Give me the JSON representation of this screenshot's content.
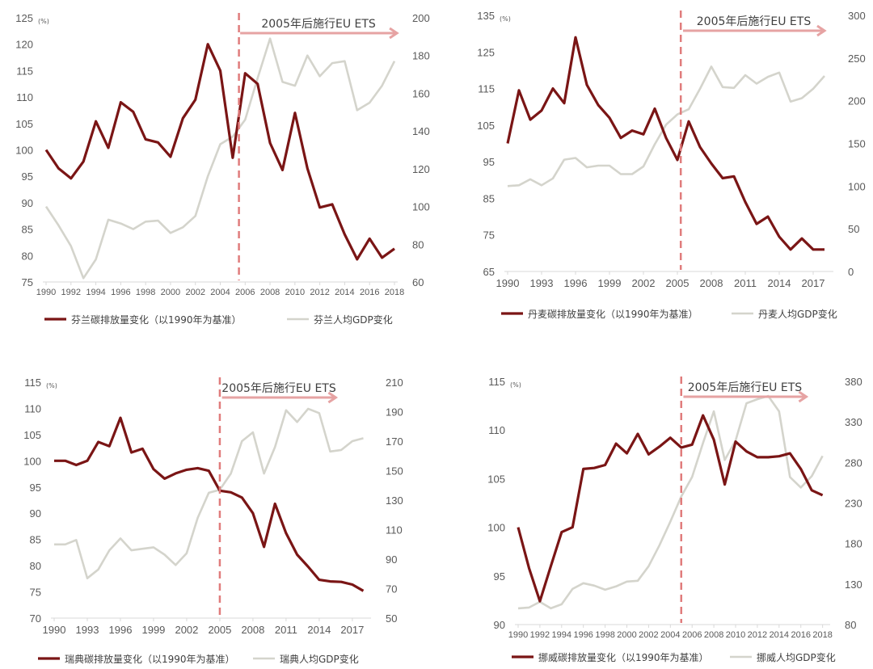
{
  "colors": {
    "emission": "#7a1515",
    "gdp": "#d4d4cc",
    "marker": "#e07c7c",
    "arrow": "#e6a3a3",
    "axis": "#d9d9d9"
  },
  "chart_data": [
    {
      "type": "line",
      "country": "Finland",
      "unit_label": "(%)",
      "annotation": "2005年后施行EU ETS",
      "marker_x": 2005.5,
      "arrow_x": [
        2005.6,
        2018.2
      ],
      "x_ticks": [
        1990,
        1992,
        1994,
        1996,
        1998,
        2000,
        2002,
        2004,
        2006,
        2008,
        2010,
        2012,
        2014,
        2016,
        2018
      ],
      "y_left": {
        "lim": [
          75,
          125
        ],
        "ticks": [
          75,
          80,
          85,
          90,
          95,
          100,
          105,
          110,
          115,
          120,
          125
        ]
      },
      "y_right": {
        "lim": [
          60,
          200
        ],
        "ticks": [
          60,
          80,
          100,
          120,
          140,
          160,
          180,
          200
        ]
      },
      "series": [
        {
          "name": "芬兰碳排放量变化（以1990年为基准）",
          "axis": "left",
          "x": [
            1990,
            1991,
            1992,
            1993,
            1994,
            1995,
            1996,
            1997,
            1998,
            1999,
            2000,
            2001,
            2002,
            2003,
            2004,
            2005,
            2006,
            2007,
            2008,
            2009,
            2010,
            2011,
            2012,
            2013,
            2014,
            2015,
            2016,
            2017,
            2018
          ],
          "values": [
            100,
            96.5,
            94.6,
            97.8,
            105.4,
            100.4,
            109,
            107.2,
            102,
            101.4,
            98.7,
            106,
            109.5,
            120,
            115,
            98.5,
            114.5,
            112.5,
            101.3,
            96.2,
            107,
            96.5,
            89.1,
            89.7,
            84,
            79.3,
            83.2,
            79.6,
            81.3
          ]
        },
        {
          "name": "芬兰人均GDP变化",
          "axis": "right",
          "x": [
            1990,
            1991,
            1992,
            1993,
            1994,
            1995,
            1996,
            1997,
            1998,
            1999,
            2000,
            2001,
            2002,
            2003,
            2004,
            2005,
            2006,
            2007,
            2008,
            2009,
            2010,
            2011,
            2012,
            2013,
            2014,
            2015,
            2016,
            2017,
            2018
          ],
          "values": [
            100,
            90,
            79,
            62,
            72,
            93,
            91,
            88,
            92,
            92.5,
            86,
            89,
            95,
            116,
            133,
            137,
            146,
            168,
            189,
            166,
            164,
            180,
            169,
            176,
            177,
            151,
            155,
            164,
            177
          ]
        }
      ]
    },
    {
      "type": "line",
      "country": "Denmark",
      "unit_label": "(%)",
      "annotation": "2005年后施行EU ETS",
      "marker_x": 2005.3,
      "arrow_x": [
        2005.5,
        2018.0
      ],
      "x_ticks": [
        1990,
        1993,
        1996,
        1999,
        2002,
        2005,
        2008,
        2011,
        2014,
        2017
      ],
      "y_left": {
        "lim": [
          65,
          135
        ],
        "ticks": [
          65,
          75,
          85,
          95,
          105,
          115,
          125,
          135
        ]
      },
      "y_right": {
        "lim": [
          0,
          300
        ],
        "ticks": [
          0,
          50,
          100,
          150,
          200,
          250,
          300
        ]
      },
      "series": [
        {
          "name": "丹麦碳排放量变化（以1990年为基准）",
          "axis": "left",
          "x": [
            1990,
            1991,
            1992,
            1993,
            1994,
            1995,
            1996,
            1997,
            1998,
            1999,
            2000,
            2001,
            2002,
            2003,
            2004,
            2005,
            2006,
            2007,
            2008,
            2009,
            2010,
            2011,
            2012,
            2013,
            2014,
            2015,
            2016,
            2017,
            2018
          ],
          "values": [
            100,
            114.5,
            106.5,
            109,
            115,
            111,
            129,
            116,
            110.5,
            107,
            101.5,
            103.5,
            102.5,
            109.5,
            101.5,
            95.5,
            106,
            99,
            94.5,
            90.5,
            91,
            84,
            78,
            80,
            74.5,
            71,
            74,
            71,
            71
          ]
        },
        {
          "name": "丹麦人均GDP变化",
          "axis": "right",
          "x": [
            1990,
            1991,
            1992,
            1993,
            1994,
            1995,
            1996,
            1997,
            1998,
            1999,
            2000,
            2001,
            2002,
            2003,
            2004,
            2005,
            2006,
            2007,
            2008,
            2009,
            2010,
            2011,
            2012,
            2013,
            2014,
            2015,
            2016,
            2017,
            2018
          ],
          "values": [
            100,
            101,
            108,
            101,
            109,
            131,
            133,
            122,
            124,
            124,
            114,
            114,
            123,
            149,
            172,
            184,
            190,
            214,
            240,
            216,
            215,
            230,
            220,
            228,
            233,
            199,
            203,
            214,
            229
          ]
        }
      ]
    },
    {
      "type": "line",
      "country": "Sweden",
      "unit_label": "(%)",
      "annotation": "2005年后施行EU ETS",
      "marker_x": 2005,
      "arrow_x": [
        2005.2,
        2015.5
      ],
      "x_ticks": [
        1990,
        1993,
        1996,
        1999,
        2002,
        2005,
        2008,
        2011,
        2014,
        2017
      ],
      "y_left": {
        "lim": [
          70,
          115
        ],
        "ticks": [
          70,
          75,
          80,
          85,
          90,
          95,
          100,
          105,
          110,
          115
        ]
      },
      "y_right": {
        "lim": [
          50,
          210
        ],
        "ticks": [
          50,
          70,
          90,
          110,
          130,
          150,
          170,
          190,
          210
        ]
      },
      "series": [
        {
          "name": "瑞典碳排放量变化（以1990年为基准）",
          "axis": "left",
          "x": [
            1990,
            1991,
            1992,
            1993,
            1994,
            1995,
            1996,
            1997,
            1998,
            1999,
            2000,
            2001,
            2002,
            2003,
            2004,
            2005,
            2006,
            2007,
            2008,
            2009,
            2010,
            2011,
            2012,
            2013,
            2014,
            2015,
            2016,
            2017,
            2018
          ],
          "values": [
            100,
            100,
            99.2,
            100,
            103.6,
            102.8,
            108.2,
            101.6,
            102.3,
            98.4,
            96.6,
            97.6,
            98.3,
            98.6,
            98.1,
            94.3,
            94,
            93,
            90,
            83.6,
            91.8,
            86.2,
            82.1,
            79.8,
            77.3,
            77,
            76.9,
            76.4,
            75.2
          ]
        },
        {
          "name": "瑞典人均GDP变化",
          "axis": "right",
          "x": [
            1990,
            1991,
            1992,
            1993,
            1994,
            1995,
            1996,
            1997,
            1998,
            1999,
            2000,
            2001,
            2002,
            2003,
            2004,
            2005,
            2006,
            2007,
            2008,
            2009,
            2010,
            2011,
            2012,
            2013,
            2014,
            2015,
            2016,
            2017,
            2018
          ],
          "values": [
            100,
            100,
            103,
            77,
            83,
            96,
            104,
            96,
            97,
            98,
            93,
            86,
            94,
            118,
            135,
            137,
            148,
            170,
            176,
            148,
            166,
            191,
            183,
            192,
            189,
            163,
            164,
            170,
            172
          ]
        }
      ]
    },
    {
      "type": "line",
      "country": "Norway",
      "unit_label": "(%)",
      "annotation": "2005年后施行EU ETS",
      "marker_x": 2005,
      "arrow_x": [
        2005.2,
        2016.5
      ],
      "x_ticks": [
        1990,
        1992,
        1994,
        1996,
        1998,
        2000,
        2002,
        2004,
        2006,
        2008,
        2010,
        2012,
        2014,
        2016,
        2018
      ],
      "y_left": {
        "lim": [
          90,
          115
        ],
        "ticks": [
          90,
          95,
          100,
          105,
          110,
          115
        ]
      },
      "y_right": {
        "lim": [
          80,
          380
        ],
        "ticks": [
          80,
          130,
          180,
          230,
          280,
          330,
          380
        ]
      },
      "series": [
        {
          "name": "挪威碳排放量变化（以1990年为基准）",
          "axis": "left",
          "x": [
            1990,
            1991,
            1992,
            1993,
            1994,
            1995,
            1996,
            1997,
            1998,
            1999,
            2000,
            2001,
            2002,
            2003,
            2004,
            2005,
            2006,
            2007,
            2008,
            2009,
            2010,
            2011,
            2012,
            2013,
            2014,
            2015,
            2016,
            2017,
            2018
          ],
          "values": [
            100,
            95.8,
            92.4,
            96,
            99.5,
            100,
            106,
            106.1,
            106.4,
            108.6,
            107.6,
            109.6,
            107.5,
            108.3,
            109.2,
            108.2,
            108.5,
            111.5,
            109,
            104.4,
            108.8,
            107.8,
            107.2,
            107.2,
            107.3,
            107.6,
            106,
            103.8,
            103.3
          ]
        },
        {
          "name": "挪威人均GDP变化",
          "axis": "right",
          "x": [
            1990,
            1991,
            1992,
            1993,
            1994,
            1995,
            1996,
            1997,
            1998,
            1999,
            2000,
            2001,
            2002,
            2003,
            2004,
            2005,
            2006,
            2007,
            2008,
            2009,
            2010,
            2011,
            2012,
            2013,
            2014,
            2015,
            2016,
            2017,
            2018
          ],
          "values": [
            100,
            101,
            108,
            100,
            105,
            124,
            131,
            128,
            123,
            127,
            133,
            134,
            152,
            178,
            207,
            238,
            262,
            304,
            343,
            283,
            307,
            353,
            358,
            362,
            343,
            262,
            249,
            263,
            288
          ]
        }
      ]
    }
  ]
}
